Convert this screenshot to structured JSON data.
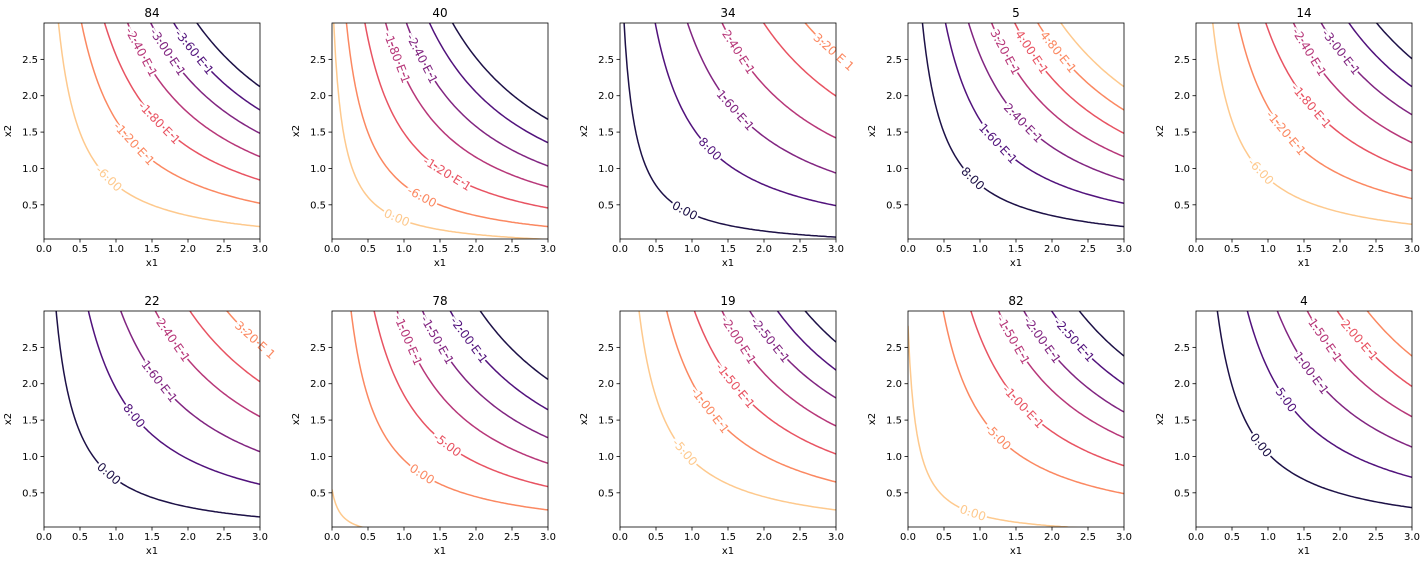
{
  "chart_data": [
    {
      "type": "contour",
      "title": "84",
      "xlabel": "x1",
      "ylabel": "x2",
      "xlim": [
        0,
        3
      ],
      "ylim": [
        0,
        3
      ],
      "xticks": [
        "0.0",
        "0.5",
        "1.0",
        "1.5",
        "2.0",
        "2.5",
        "3.0"
      ],
      "yticks": [
        "0.5",
        "1.0",
        "1.5",
        "2.0",
        "2.5"
      ],
      "levels": [
        {
          "k": 1,
          "label": "-6.00",
          "color": "#fec98d"
        },
        {
          "k": 2,
          "label": "-1.20 E 1",
          "color": "#fb8861"
        },
        {
          "k": 3,
          "label": "-1.80 E 1",
          "color": "#e85362"
        },
        {
          "k": 4,
          "label": "-2.40 E 1",
          "color": "#b73779"
        },
        {
          "k": 5,
          "label": "-3.00 E 1",
          "color": "#812581"
        },
        {
          "k": 6,
          "label": "-3.60 E 1",
          "color": "#51127c"
        },
        {
          "k": 7,
          "label": "",
          "color": "#1d1147"
        }
      ]
    },
    {
      "type": "contour",
      "title": "40",
      "xlabel": "x1",
      "ylabel": "x2",
      "xlim": [
        0,
        3
      ],
      "ylim": [
        0,
        3
      ],
      "xticks": [
        "0.0",
        "0.5",
        "1.0",
        "1.5",
        "2.0",
        "2.5",
        "3.0"
      ],
      "yticks": [
        "0.5",
        "1.0",
        "1.5",
        "2.0",
        "2.5"
      ],
      "levels": [
        {
          "k": 0.45,
          "label": "0.00",
          "color": "#fec98d"
        },
        {
          "k": 1,
          "label": "-6.00",
          "color": "#fb8861"
        },
        {
          "k": 1.8,
          "label": "-1.20 E 1",
          "color": "#e85362"
        },
        {
          "k": 2.7,
          "label": "-1.80 E 1",
          "color": "#b73779"
        },
        {
          "k": 3.6,
          "label": "-2.40 E 1",
          "color": "#812581"
        },
        {
          "k": 4.6,
          "label": "",
          "color": "#51127c"
        },
        {
          "k": 5.6,
          "label": "",
          "color": "#1d1147"
        }
      ]
    },
    {
      "type": "contour",
      "title": "34",
      "xlabel": "x1",
      "ylabel": "x2",
      "xlim": [
        0,
        3
      ],
      "ylim": [
        0,
        3
      ],
      "xticks": [
        "0.0",
        "0.5",
        "1.0",
        "1.5",
        "2.0",
        "2.5",
        "3.0"
      ],
      "yticks": [
        "0.5",
        "1.0",
        "1.5",
        "2.0",
        "2.5"
      ],
      "levels": [
        {
          "k": 0.55,
          "label": "0.00",
          "color": "#1d1147"
        },
        {
          "k": 1.9,
          "label": "8.00",
          "color": "#51127c"
        },
        {
          "k": 3.3,
          "label": "1.60 E 1",
          "color": "#812581"
        },
        {
          "k": 4.8,
          "label": "2.40 E 1",
          "color": "#b73779"
        },
        {
          "k": 6.6,
          "label": "",
          "color": "#e85362"
        },
        {
          "k": 8.4,
          "label": "3.20 E 1",
          "color": "#fb8861"
        },
        {
          "k": 10.5,
          "label": "",
          "color": "#fec98d"
        }
      ]
    },
    {
      "type": "contour",
      "title": "5",
      "xlabel": "x1",
      "ylabel": "x2",
      "xlim": [
        0,
        3
      ],
      "ylim": [
        0,
        3
      ],
      "xticks": [
        "0.0",
        "0.5",
        "1.0",
        "1.5",
        "2.0",
        "2.5",
        "3.0"
      ],
      "yticks": [
        "0.5",
        "1.0",
        "1.5",
        "2.0",
        "2.5"
      ],
      "levels": [
        {
          "k": 1,
          "label": "8.00",
          "color": "#1d1147"
        },
        {
          "k": 2,
          "label": "1.60 E 1",
          "color": "#51127c"
        },
        {
          "k": 3,
          "label": "2.40 E 1",
          "color": "#812581"
        },
        {
          "k": 4,
          "label": "3.20 E 1",
          "color": "#b73779"
        },
        {
          "k": 5,
          "label": "4.00 E 1",
          "color": "#e85362"
        },
        {
          "k": 6,
          "label": "4.80 E 1",
          "color": "#fb8861"
        },
        {
          "k": 7,
          "label": "",
          "color": "#fec98d"
        }
      ]
    },
    {
      "type": "contour",
      "title": "14",
      "xlabel": "x1",
      "ylabel": "x2",
      "xlim": [
        0,
        3
      ],
      "ylim": [
        0,
        3
      ],
      "xticks": [
        "0.0",
        "0.5",
        "1.0",
        "1.5",
        "2.0",
        "2.5",
        "3.0"
      ],
      "yticks": [
        "0.5",
        "1.0",
        "1.5",
        "2.0",
        "2.5"
      ],
      "levels": [
        {
          "k": 1.1,
          "label": "-6.00",
          "color": "#fec98d"
        },
        {
          "k": 2.2,
          "label": "-1.20 E 1",
          "color": "#fb8861"
        },
        {
          "k": 3.4,
          "label": "-1.80 E 1",
          "color": "#e85362"
        },
        {
          "k": 4.6,
          "label": "-2.40 E 1",
          "color": "#b73779"
        },
        {
          "k": 5.8,
          "label": "-3.00 E 1",
          "color": "#812581"
        },
        {
          "k": 7,
          "label": "",
          "color": "#51127c"
        },
        {
          "k": 8.2,
          "label": "",
          "color": "#1d1147"
        }
      ]
    },
    {
      "type": "contour",
      "title": "22",
      "xlabel": "x1",
      "ylabel": "x2",
      "xlim": [
        0,
        3
      ],
      "ylim": [
        0,
        3
      ],
      "xticks": [
        "0.0",
        "0.5",
        "1.0",
        "1.5",
        "2.0",
        "2.5",
        "3.0"
      ],
      "yticks": [
        "0.5",
        "1.0",
        "1.5",
        "2.0",
        "2.5"
      ],
      "levels": [
        {
          "k": 0.9,
          "label": "0.00",
          "color": "#1d1147"
        },
        {
          "k": 2.3,
          "label": "8.00",
          "color": "#51127c"
        },
        {
          "k": 3.7,
          "label": "1.60 E 1",
          "color": "#812581"
        },
        {
          "k": 5.2,
          "label": "2.40 E 1",
          "color": "#b73779"
        },
        {
          "k": 6.7,
          "label": "",
          "color": "#e85362"
        },
        {
          "k": 8.3,
          "label": "3.20 E 1",
          "color": "#fb8861"
        },
        {
          "k": 10,
          "label": "",
          "color": "#fec98d"
        }
      ]
    },
    {
      "type": "contour",
      "title": "78",
      "xlabel": "x1",
      "ylabel": "x2",
      "xlim": [
        0,
        3
      ],
      "ylim": [
        0,
        3
      ],
      "xticks": [
        "0.0",
        "0.5",
        "1.0",
        "1.5",
        "2.0",
        "2.5",
        "3.0"
      ],
      "yticks": [
        "0.5",
        "1.0",
        "1.5",
        "2.0",
        "2.5"
      ],
      "levels": [
        {
          "k": 0.08,
          "label": "",
          "color": "#fec98d"
        },
        {
          "k": 1.2,
          "label": "0.00",
          "color": "#fb8861"
        },
        {
          "k": 2.2,
          "label": "-5.00",
          "color": "#e85362"
        },
        {
          "k": 3.2,
          "label": "-1.00 E 1",
          "color": "#b73779"
        },
        {
          "k": 4.3,
          "label": "-1.50 E 1",
          "color": "#812581"
        },
        {
          "k": 5.5,
          "label": "-2.00 E 1",
          "color": "#51127c"
        },
        {
          "k": 6.8,
          "label": "",
          "color": "#1d1147"
        }
      ]
    },
    {
      "type": "contour",
      "title": "19",
      "xlabel": "x1",
      "ylabel": "x2",
      "xlim": [
        0,
        3
      ],
      "ylim": [
        0,
        3
      ],
      "xticks": [
        "0.0",
        "0.5",
        "1.0",
        "1.5",
        "2.0",
        "2.5",
        "3.0"
      ],
      "yticks": [
        "0.5",
        "1.0",
        "1.5",
        "2.0",
        "2.5"
      ],
      "levels": [
        {
          "k": 1.2,
          "label": "-5.00",
          "color": "#fec98d"
        },
        {
          "k": 2.4,
          "label": "-1.00 E 1",
          "color": "#fb8861"
        },
        {
          "k": 3.6,
          "label": "-1.50 E 1",
          "color": "#e85362"
        },
        {
          "k": 4.8,
          "label": "-2.00 E 1",
          "color": "#b73779"
        },
        {
          "k": 6,
          "label": "-2.50 E 1",
          "color": "#812581"
        },
        {
          "k": 7.2,
          "label": "",
          "color": "#51127c"
        },
        {
          "k": 8.4,
          "label": "",
          "color": "#1d1147"
        }
      ]
    },
    {
      "type": "contour",
      "title": "82",
      "xlabel": "x1",
      "ylabel": "x2",
      "xlim": [
        0,
        3
      ],
      "ylim": [
        0,
        3
      ],
      "xticks": [
        "0.0",
        "0.5",
        "1.0",
        "1.5",
        "2.0",
        "2.5",
        "3.0"
      ],
      "yticks": [
        "0.5",
        "1.0",
        "1.5",
        "2.0",
        "2.5"
      ],
      "levels": [
        {
          "k": 0.35,
          "label": "0.00",
          "color": "#fec98d"
        },
        {
          "k": 1.9,
          "label": "-5.00",
          "color": "#fb8861"
        },
        {
          "k": 3.1,
          "label": "-1.00 E 1",
          "color": "#e85362"
        },
        {
          "k": 4.3,
          "label": "-1.50 E 1",
          "color": "#b73779"
        },
        {
          "k": 5.4,
          "label": "-2.00 E 1",
          "color": "#812581"
        },
        {
          "k": 6.6,
          "label": "-2.50 E 1",
          "color": "#51127c"
        },
        {
          "k": 7.8,
          "label": "",
          "color": "#1d1147"
        }
      ]
    },
    {
      "type": "contour",
      "title": "4",
      "xlabel": "x1",
      "ylabel": "x2",
      "xlim": [
        0,
        3
      ],
      "ylim": [
        0,
        3
      ],
      "xticks": [
        "0.0",
        "0.5",
        "1.0",
        "1.5",
        "2.0",
        "2.5",
        "3.0"
      ],
      "yticks": [
        "0.5",
        "1.0",
        "1.5",
        "2.0",
        "2.5"
      ],
      "levels": [
        {
          "k": 1.3,
          "label": "0.00",
          "color": "#1d1147"
        },
        {
          "k": 2.6,
          "label": "5.00",
          "color": "#51127c"
        },
        {
          "k": 3.9,
          "label": "1.00 E 1",
          "color": "#812581"
        },
        {
          "k": 5.2,
          "label": "1.50 E 1",
          "color": "#b73779"
        },
        {
          "k": 6.5,
          "label": "2.00 E 1",
          "color": "#e85362"
        },
        {
          "k": 7.8,
          "label": "",
          "color": "#fb8861"
        }
      ]
    }
  ]
}
